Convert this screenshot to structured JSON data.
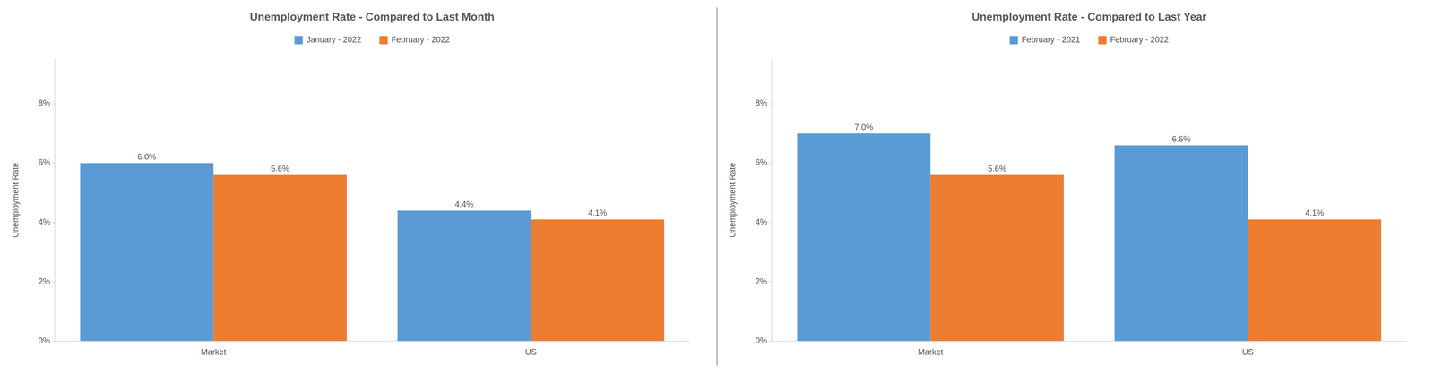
{
  "chart_data": [
    {
      "type": "bar",
      "title": "Unemployment Rate - Compared to Last Month",
      "categories": [
        "Market",
        "US"
      ],
      "series": [
        {
          "name": "January - 2022",
          "color": "#5B9BD5",
          "values": [
            6.0,
            4.4
          ],
          "value_labels": [
            "6.0%",
            "4.4%"
          ]
        },
        {
          "name": "February - 2022",
          "color": "#ED7D31",
          "values": [
            5.6,
            4.1
          ],
          "value_labels": [
            "5.6%",
            "4.1%"
          ]
        }
      ],
      "ylabel": "Unemployment Rate",
      "ylim": [
        0,
        9.5
      ],
      "yticks": [
        {
          "value": 0,
          "label": "0%"
        },
        {
          "value": 2,
          "label": "2%"
        },
        {
          "value": 4,
          "label": "4%"
        },
        {
          "value": 6,
          "label": "6%"
        },
        {
          "value": 8,
          "label": "8%"
        }
      ],
      "grid": false,
      "legend": "top"
    },
    {
      "type": "bar",
      "title": "Unemployment Rate - Compared to Last Year",
      "categories": [
        "Market",
        "US"
      ],
      "series": [
        {
          "name": "February - 2021",
          "color": "#5B9BD5",
          "values": [
            7.0,
            6.6
          ],
          "value_labels": [
            "7.0%",
            "6.6%"
          ]
        },
        {
          "name": "February - 2022",
          "color": "#ED7D31",
          "values": [
            5.6,
            4.1
          ],
          "value_labels": [
            "5.6%",
            "4.1%"
          ]
        }
      ],
      "ylabel": "Unemployment Rate",
      "ylim": [
        0,
        9.5
      ],
      "yticks": [
        {
          "value": 0,
          "label": "0%"
        },
        {
          "value": 2,
          "label": "2%"
        },
        {
          "value": 4,
          "label": "4%"
        },
        {
          "value": 6,
          "label": "6%"
        },
        {
          "value": 8,
          "label": "8%"
        }
      ],
      "grid": false,
      "legend": "top"
    }
  ]
}
